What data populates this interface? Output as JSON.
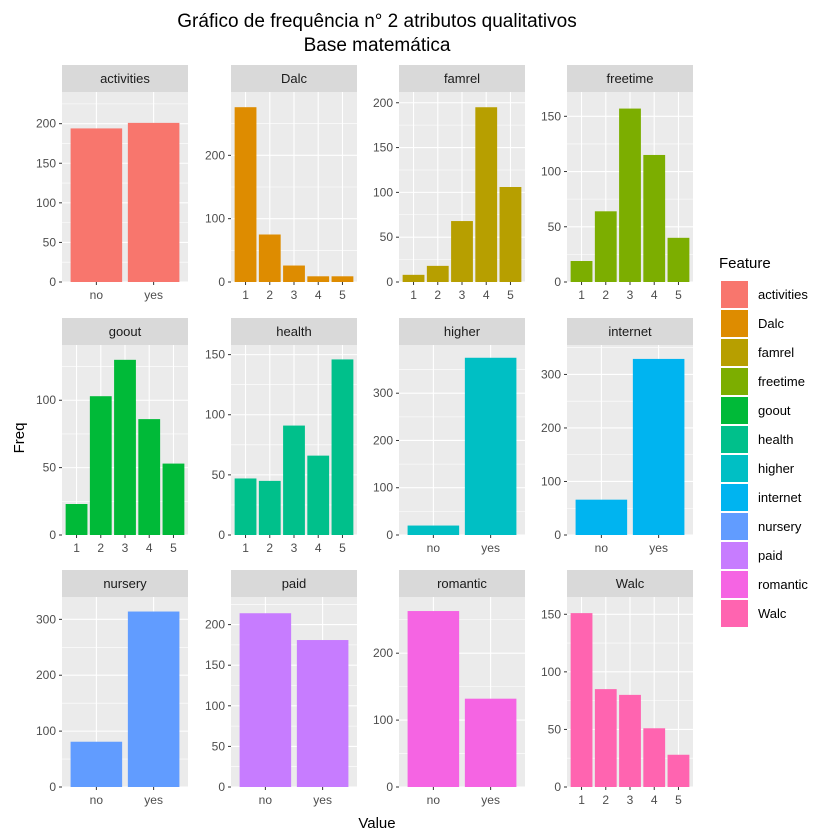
{
  "chart_data": {
    "type": "bar",
    "title": "Gráfico de frequência n° 2 atributos qualitativos",
    "subtitle": "Base matemática",
    "xlabel": "Value",
    "ylabel": "Freq",
    "grid": true,
    "legend_title": "Feature",
    "legend_placement": "right",
    "facets": [
      {
        "name": "activities",
        "color": "#F8766D",
        "categories": [
          "no",
          "yes"
        ],
        "values": [
          194,
          201
        ],
        "ylim": [
          0,
          240
        ],
        "yticks": [
          0,
          50,
          100,
          150,
          200
        ]
      },
      {
        "name": "Dalc",
        "color": "#DE8C00",
        "categories": [
          "1",
          "2",
          "3",
          "4",
          "5"
        ],
        "values": [
          276,
          75,
          26,
          9,
          9
        ],
        "ylim": [
          0,
          300
        ],
        "yticks": [
          0,
          100,
          200
        ]
      },
      {
        "name": "famrel",
        "color": "#B79F00",
        "categories": [
          "1",
          "2",
          "3",
          "4",
          "5"
        ],
        "values": [
          8,
          18,
          68,
          195,
          106
        ],
        "ylim": [
          0,
          212
        ],
        "yticks": [
          0,
          50,
          100,
          150,
          200
        ]
      },
      {
        "name": "freetime",
        "color": "#7CAE00",
        "categories": [
          "1",
          "2",
          "3",
          "4",
          "5"
        ],
        "values": [
          19,
          64,
          157,
          115,
          40
        ],
        "ylim": [
          0,
          172
        ],
        "yticks": [
          0,
          50,
          100,
          150
        ]
      },
      {
        "name": "goout",
        "color": "#00BA38",
        "categories": [
          "1",
          "2",
          "3",
          "4",
          "5"
        ],
        "values": [
          23,
          103,
          130,
          86,
          53
        ],
        "ylim": [
          0,
          141
        ],
        "yticks": [
          0,
          50,
          100
        ]
      },
      {
        "name": "health",
        "color": "#00C08B",
        "categories": [
          "1",
          "2",
          "3",
          "4",
          "5"
        ],
        "values": [
          47,
          45,
          91,
          66,
          146
        ],
        "ylim": [
          0,
          158
        ],
        "yticks": [
          0,
          50,
          100,
          150
        ]
      },
      {
        "name": "higher",
        "color": "#00BFC4",
        "categories": [
          "no",
          "yes"
        ],
        "values": [
          20,
          375
        ],
        "ylim": [
          0,
          402
        ],
        "yticks": [
          0,
          100,
          200,
          300
        ]
      },
      {
        "name": "internet",
        "color": "#00B4F0",
        "categories": [
          "no",
          "yes"
        ],
        "values": [
          66,
          329
        ],
        "ylim": [
          0,
          355
        ],
        "yticks": [
          0,
          100,
          200,
          300
        ]
      },
      {
        "name": "nursery",
        "color": "#619CFF",
        "categories": [
          "no",
          "yes"
        ],
        "values": [
          81,
          314
        ],
        "ylim": [
          0,
          340
        ],
        "yticks": [
          0,
          100,
          200,
          300
        ]
      },
      {
        "name": "paid",
        "color": "#C77CFF",
        "categories": [
          "no",
          "yes"
        ],
        "values": [
          214,
          181
        ],
        "ylim": [
          0,
          234
        ],
        "yticks": [
          0,
          50,
          100,
          150,
          200
        ]
      },
      {
        "name": "romantic",
        "color": "#F564E3",
        "categories": [
          "no",
          "yes"
        ],
        "values": [
          263,
          132
        ],
        "ylim": [
          0,
          284
        ],
        "yticks": [
          0,
          100,
          200
        ]
      },
      {
        "name": "Walc",
        "color": "#FF64B0",
        "categories": [
          "1",
          "2",
          "3",
          "4",
          "5"
        ],
        "values": [
          151,
          85,
          80,
          51,
          28
        ],
        "ylim": [
          0,
          165
        ],
        "yticks": [
          0,
          50,
          100,
          150
        ]
      }
    ]
  }
}
